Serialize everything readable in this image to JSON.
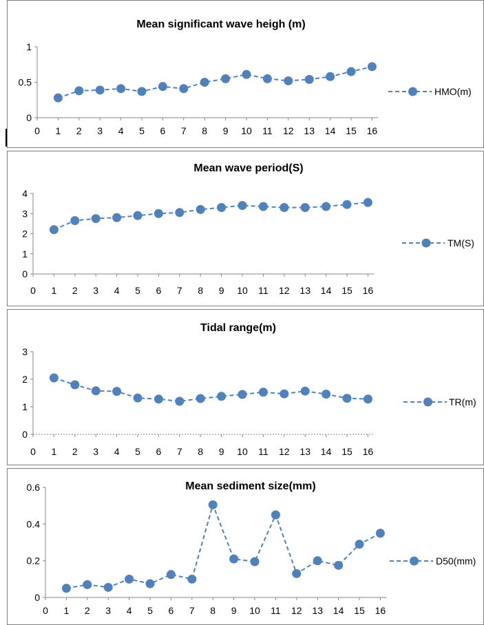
{
  "chart_data": [
    {
      "type": "line",
      "title": "Mean significant wave heigh (m)",
      "x": [
        1,
        2,
        3,
        4,
        5,
        6,
        7,
        8,
        9,
        10,
        11,
        12,
        13,
        14,
        15,
        16
      ],
      "x_ticks": [
        "0",
        "1",
        "2",
        "3",
        "4",
        "5",
        "6",
        "7",
        "8",
        "9",
        "10",
        "11",
        "12",
        "13",
        "14",
        "15",
        "16"
      ],
      "xlim": [
        0,
        16.3
      ],
      "y_ticks": [
        "0",
        "0.5",
        "1"
      ],
      "ylim": [
        0,
        1
      ],
      "grid": false,
      "legend_position": "right",
      "color": "#4f81bd",
      "series": [
        {
          "name": "HMO(m)",
          "values": [
            0.28,
            0.38,
            0.39,
            0.41,
            0.37,
            0.44,
            0.41,
            0.5,
            0.55,
            0.61,
            0.55,
            0.52,
            0.54,
            0.58,
            0.65,
            0.72
          ]
        }
      ]
    },
    {
      "type": "line",
      "title": "Mean wave period(S)",
      "x": [
        1,
        2,
        3,
        4,
        5,
        6,
        7,
        8,
        9,
        10,
        11,
        12,
        13,
        14,
        15,
        16
      ],
      "x_ticks": [
        "0",
        "1",
        "2",
        "3",
        "4",
        "5",
        "6",
        "7",
        "8",
        "9",
        "10",
        "11",
        "12",
        "13",
        "14",
        "15",
        "16"
      ],
      "xlim": [
        0,
        16.3
      ],
      "y_ticks": [
        "0",
        "1",
        "2",
        "3",
        "4"
      ],
      "ylim": [
        0,
        4
      ],
      "grid": false,
      "legend_position": "right",
      "color": "#4f81bd",
      "series": [
        {
          "name": "TM(S)",
          "values": [
            2.2,
            2.65,
            2.75,
            2.8,
            2.9,
            3.0,
            3.05,
            3.2,
            3.3,
            3.4,
            3.35,
            3.3,
            3.3,
            3.35,
            3.45,
            3.55
          ]
        }
      ]
    },
    {
      "type": "line",
      "title": "Tidal range(m)",
      "x": [
        1,
        2,
        3,
        4,
        5,
        6,
        7,
        8,
        9,
        10,
        11,
        12,
        13,
        14,
        15,
        16
      ],
      "x_ticks": [
        "0",
        "1",
        "2",
        "3",
        "4",
        "5",
        "6",
        "7",
        "8",
        "9",
        "10",
        "11",
        "12",
        "13",
        "14",
        "15",
        "16"
      ],
      "xlim": [
        0,
        16.3
      ],
      "y_ticks": [
        "0",
        "1",
        "2",
        "3"
      ],
      "ylim": [
        0,
        3
      ],
      "grid": false,
      "legend_position": "right",
      "color": "#4f81bd",
      "series": [
        {
          "name": "TR(m)",
          "values": [
            2.05,
            1.8,
            1.58,
            1.56,
            1.32,
            1.28,
            1.2,
            1.3,
            1.38,
            1.45,
            1.53,
            1.47,
            1.57,
            1.46,
            1.31,
            1.28
          ]
        }
      ]
    },
    {
      "type": "line",
      "title": "Mean sediment size(mm)",
      "x": [
        1,
        2,
        3,
        4,
        5,
        6,
        7,
        8,
        9,
        10,
        11,
        12,
        13,
        14,
        15,
        16
      ],
      "x_ticks": [
        "0",
        "1",
        "2",
        "3",
        "4",
        "5",
        "6",
        "7",
        "8",
        "9",
        "10",
        "11",
        "12",
        "13",
        "14",
        "15",
        "16"
      ],
      "xlim": [
        0,
        16.3
      ],
      "y_ticks": [
        "0",
        "0.2",
        "0.4",
        "0.6"
      ],
      "ylim": [
        0,
        0.6
      ],
      "grid": false,
      "legend_position": "right",
      "color": "#4f81bd",
      "series": [
        {
          "name": "D50(mm)",
          "values": [
            0.05,
            0.07,
            0.055,
            0.1,
            0.075,
            0.125,
            0.1,
            0.505,
            0.21,
            0.195,
            0.45,
            0.13,
            0.2,
            0.175,
            0.29,
            0.35
          ]
        }
      ]
    }
  ]
}
